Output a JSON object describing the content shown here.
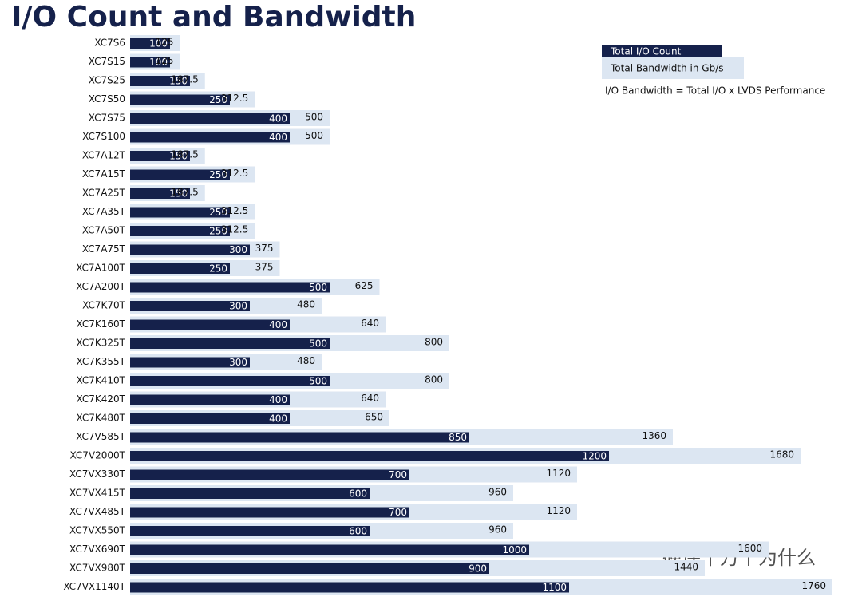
{
  "chart_data": {
    "type": "bar",
    "title": "I/O Count and Bandwidth",
    "annotation": "I/O Bandwidth = Total I/O x LVDS Performance",
    "watermark": "硬件十万个为什么",
    "categories": [
      "XC7S6",
      "XC7S15",
      "XC7S25",
      "XC7S50",
      "XC7S75",
      "XC7S100",
      "XC7A12T",
      "XC7A15T",
      "XC7A25T",
      "XC7A35T",
      "XC7A50T",
      "XC7A75T",
      "XC7A100T",
      "XC7A200T",
      "XC7K70T",
      "XC7K160T",
      "XC7K325T",
      "XC7K355T",
      "XC7K410T",
      "XC7K420T",
      "XC7K480T",
      "XC7V585T",
      "XC7V2000T",
      "XC7VX330T",
      "XC7VX415T",
      "XC7VX485T",
      "XC7VX550T",
      "XC7VX690T",
      "XC7VX980T",
      "XC7VX1140T"
    ],
    "series": [
      {
        "name": "Total I/O Count",
        "color": "#15214b",
        "values": [
          100,
          100,
          150,
          250,
          400,
          400,
          150,
          250,
          150,
          250,
          250,
          300,
          250,
          500,
          300,
          400,
          500,
          300,
          500,
          400,
          400,
          850,
          1200,
          700,
          600,
          700,
          600,
          1000,
          900,
          1100
        ]
      },
      {
        "name": "Total Bandwidth in Gb/s",
        "color": "#dce6f2",
        "values": [
          125,
          125,
          187.5,
          312.5,
          500,
          500,
          187.5,
          312.5,
          187.5,
          312.5,
          312.5,
          375,
          375,
          625,
          480,
          640,
          800,
          480,
          800,
          640,
          650,
          1360,
          1680,
          1120,
          960,
          1120,
          960,
          1600,
          1440,
          1760
        ]
      }
    ]
  }
}
